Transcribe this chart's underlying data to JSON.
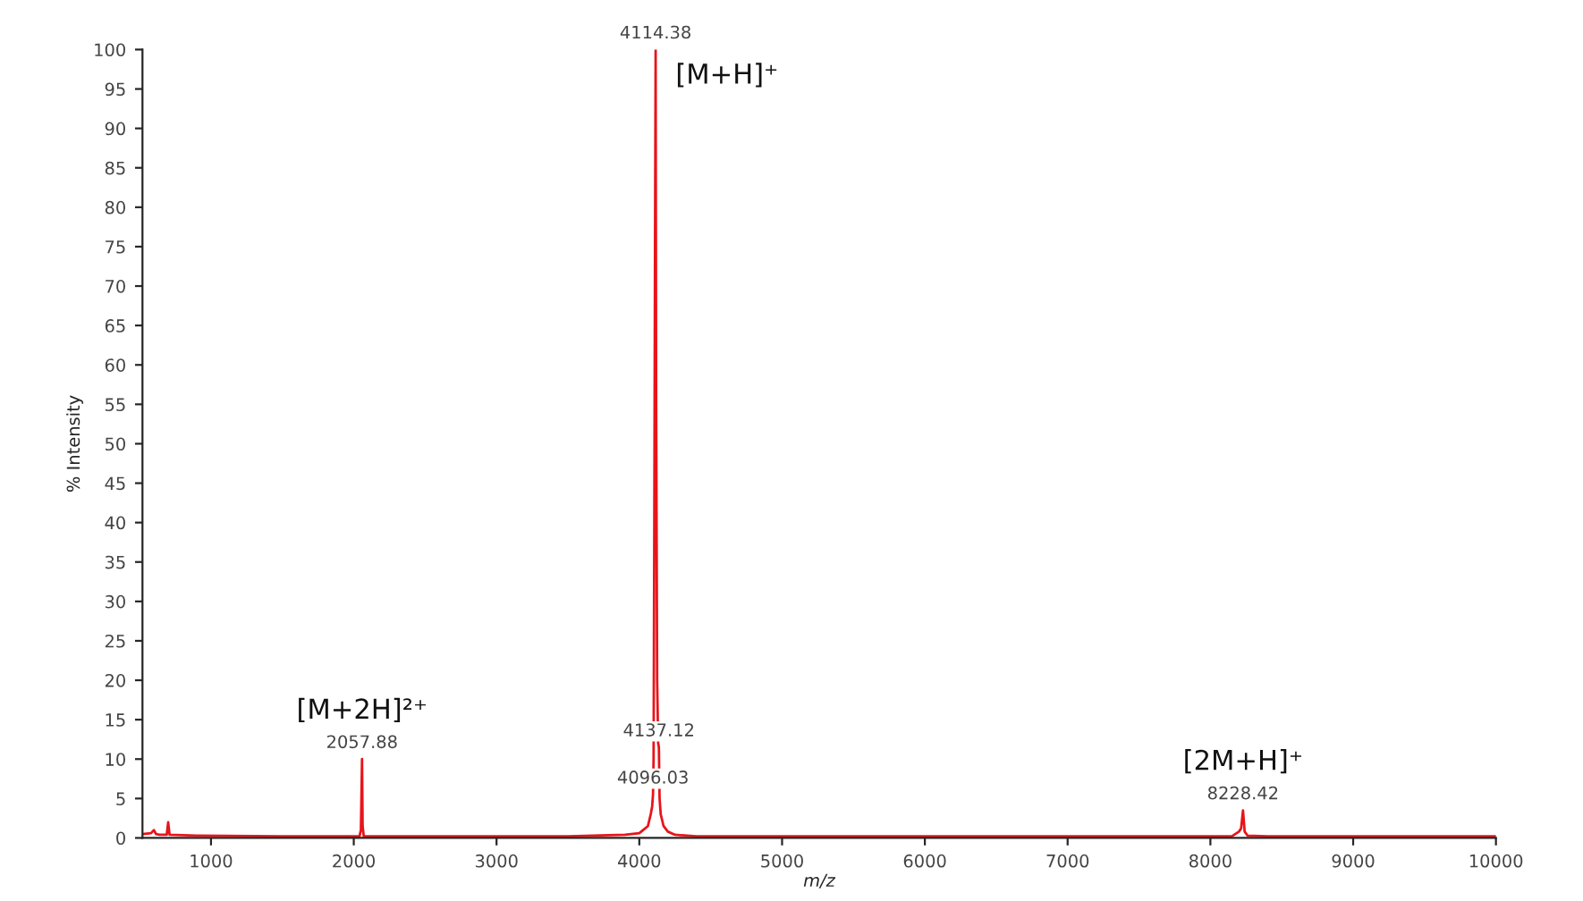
{
  "chart_data": {
    "type": "line",
    "xlabel": "m/z",
    "ylabel": "% Intensity",
    "xlim": [
      520,
      10000
    ],
    "ylim": [
      0,
      100
    ],
    "xticks": [
      1000,
      2000,
      3000,
      4000,
      5000,
      6000,
      7000,
      8000,
      9000,
      10000
    ],
    "yticks": [
      0,
      5,
      10,
      15,
      20,
      25,
      30,
      35,
      40,
      45,
      50,
      55,
      60,
      65,
      70,
      75,
      80,
      85,
      90,
      95,
      100
    ],
    "grid": false,
    "marker": "none",
    "line_style": "solid",
    "series": [
      {
        "color": "#e8141a",
        "x": [
          520,
          580,
          600,
          615,
          640,
          690,
          700,
          710,
          900,
          1500,
          2040,
          2050,
          2057.88,
          2062,
          2070,
          2500,
          3500,
          3900,
          4000,
          4060,
          4080,
          4090,
          4096.03,
          4100,
          4105,
          4110,
          4114.38,
          4118,
          4125,
          4132,
          4137.12,
          4142,
          4150,
          4170,
          4200,
          4250,
          4400,
          6000,
          8150,
          8200,
          8215,
          8228.42,
          8240,
          8260,
          8400,
          10000
        ],
        "values": [
          0.5,
          0.6,
          1.0,
          0.5,
          0.4,
          0.4,
          2.0,
          0.4,
          0.3,
          0.2,
          0.2,
          1.0,
          10,
          1.5,
          0.2,
          0.2,
          0.2,
          0.4,
          0.6,
          1.5,
          3,
          4,
          5.5,
          10,
          40,
          75,
          100,
          55,
          20,
          12,
          11.5,
          5,
          3,
          1.5,
          0.8,
          0.4,
          0.2,
          0.2,
          0.2,
          0.8,
          1.2,
          3.5,
          0.8,
          0.3,
          0.2,
          0.2
        ]
      }
    ],
    "annotations": [
      {
        "text": "4114.38",
        "x": 4114.38,
        "y": 100
      },
      {
        "text": "[M+H]⁺",
        "x": 4114.38,
        "y": 100
      },
      {
        "text": "2057.88",
        "x": 2057.88,
        "y": 10
      },
      {
        "text": "[M+2H]²⁺",
        "x": 2057.88,
        "y": 10
      },
      {
        "text": "4137.12",
        "x": 4137.12,
        "y": 11.5
      },
      {
        "text": "4096.03",
        "x": 4096.03,
        "y": 5.5
      },
      {
        "text": "8228.42",
        "x": 8228.42,
        "y": 3.5
      },
      {
        "text": "[2M+H]⁺",
        "x": 8228.42,
        "y": 3.5
      }
    ]
  }
}
